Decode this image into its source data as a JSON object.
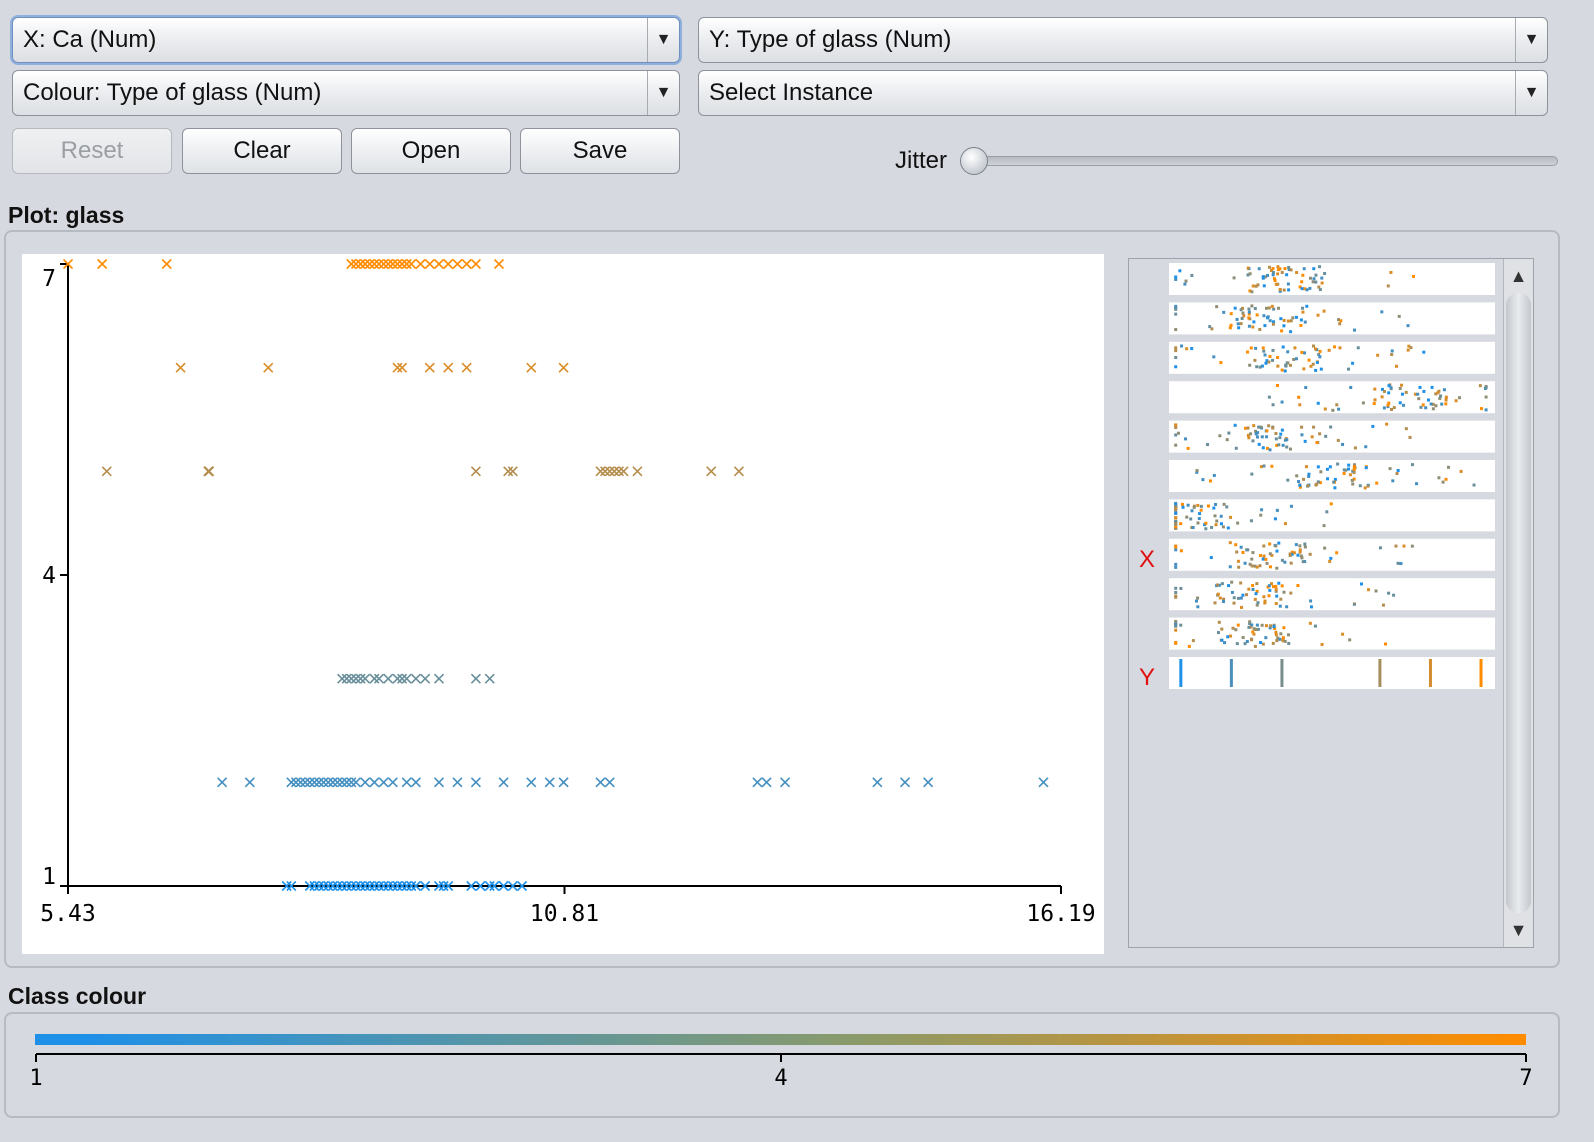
{
  "controls": {
    "x_select": "X: Ca (Num)",
    "y_select": "Y: Type of glass (Num)",
    "colour_select": "Colour: Type of glass (Num)",
    "instance_select": "Select Instance",
    "reset_label": "Reset",
    "clear_label": "Clear",
    "open_label": "Open",
    "save_label": "Save",
    "jitter_label": "Jitter",
    "jitter_value": 0
  },
  "plot": {
    "title": "Plot: glass",
    "x_ticks": [
      "5.43",
      "10.81",
      "16.19"
    ],
    "y_ticks": [
      "1",
      "4",
      "7"
    ]
  },
  "chart_data": {
    "type": "scatter",
    "title": "Plot: glass",
    "xlabel": "Ca",
    "ylabel": "Type of glass",
    "xlim": [
      5.43,
      16.19
    ],
    "ylim": [
      1,
      7
    ],
    "marker": "x",
    "colour_attribute": "Type of glass",
    "colours": {
      "low": "#1e90e8",
      "mid": "#4f8f8a",
      "high": "#ff8c00"
    },
    "series": [
      {
        "name": "1",
        "y": 1,
        "x": [
          7.8,
          7.85,
          8.05,
          8.1,
          8.15,
          8.2,
          8.25,
          8.3,
          8.35,
          8.4,
          8.45,
          8.5,
          8.55,
          8.6,
          8.65,
          8.7,
          8.75,
          8.8,
          8.85,
          8.9,
          8.95,
          9.0,
          9.05,
          9.1,
          9.15,
          9.2,
          9.3,
          9.45,
          9.5,
          9.55,
          9.8,
          9.9,
          10.0,
          10.05,
          10.15,
          10.25,
          10.35
        ]
      },
      {
        "name": "2",
        "y": 2,
        "x": [
          7.1,
          7.4,
          7.85,
          7.9,
          7.95,
          8.0,
          8.05,
          8.1,
          8.15,
          8.2,
          8.25,
          8.3,
          8.35,
          8.4,
          8.45,
          8.5,
          8.55,
          8.65,
          8.75,
          8.85,
          8.95,
          9.1,
          9.2,
          9.45,
          9.65,
          9.85,
          10.15,
          10.45,
          10.65,
          10.8,
          11.2,
          11.3,
          12.9,
          13.0,
          13.2,
          14.2,
          14.5,
          14.75,
          16.0
        ]
      },
      {
        "name": "3",
        "y": 3,
        "x": [
          8.4,
          8.45,
          8.5,
          8.55,
          8.6,
          8.65,
          8.75,
          8.8,
          8.9,
          9.0,
          9.05,
          9.1,
          9.2,
          9.3,
          9.45,
          9.85,
          10.0
        ]
      },
      {
        "name": "5",
        "y": 5,
        "x": [
          5.85,
          6.95,
          6.96,
          9.85,
          10.2,
          10.25,
          11.2,
          11.25,
          11.3,
          11.35,
          11.4,
          11.45,
          11.6,
          12.4,
          12.7
        ]
      },
      {
        "name": "6",
        "y": 6,
        "x": [
          6.65,
          7.6,
          9.0,
          9.05,
          9.35,
          9.55,
          9.75,
          10.45,
          10.8
        ]
      },
      {
        "name": "7",
        "y": 7,
        "x": [
          5.43,
          5.8,
          6.5,
          8.5,
          8.55,
          8.6,
          8.65,
          8.7,
          8.75,
          8.8,
          8.85,
          8.9,
          8.95,
          9.0,
          9.05,
          9.1,
          9.15,
          9.25,
          9.35,
          9.45,
          9.55,
          9.65,
          9.75,
          9.85,
          10.1
        ]
      }
    ]
  },
  "matrix": {
    "x_marker": "X",
    "y_marker": "Y",
    "rows": 11
  },
  "class_colour": {
    "title": "Class colour",
    "ticks": [
      "1",
      "4",
      "7"
    ]
  }
}
